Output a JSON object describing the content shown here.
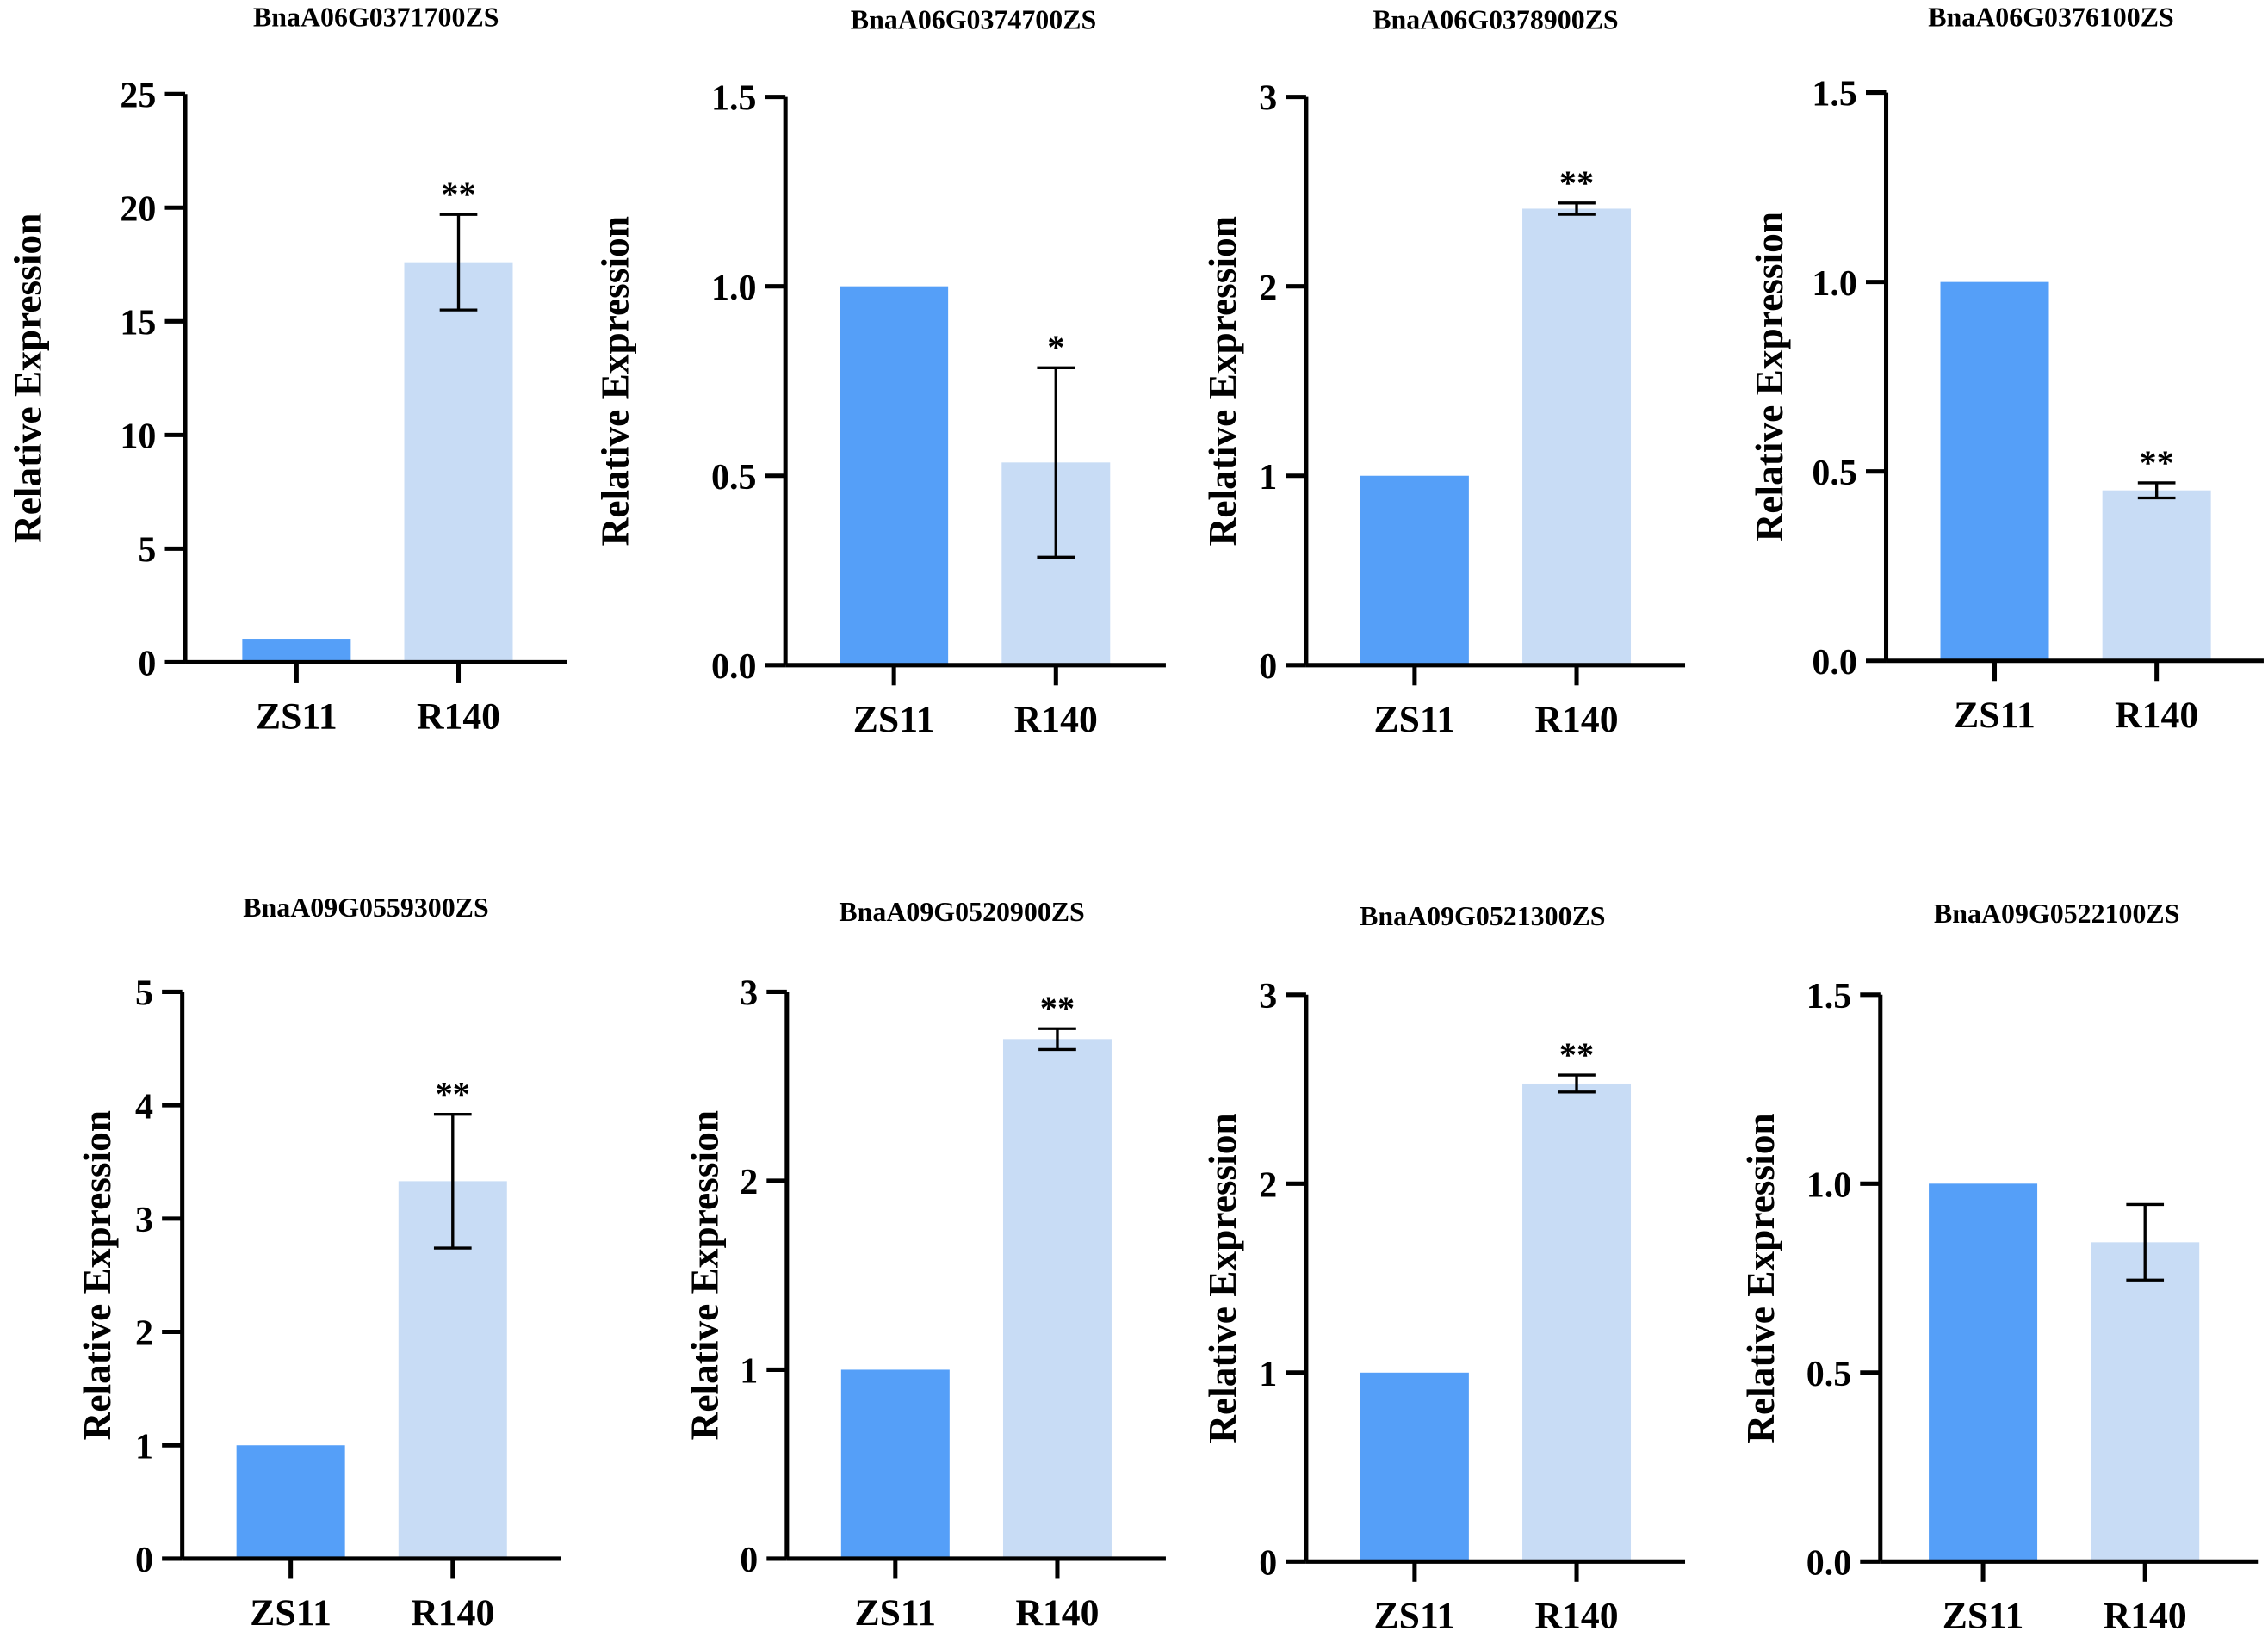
{
  "chart_data": [
    {
      "type": "bar",
      "title": "BnaA06G0371700ZS",
      "ylabel": "Relative Expression",
      "categories": [
        "ZS11",
        "R140"
      ],
      "values": [
        1,
        17.6
      ],
      "errors": [
        0,
        2.1
      ],
      "significance": [
        "",
        "**"
      ],
      "ylim": [
        0,
        25
      ],
      "yticks": [
        "0",
        "5",
        "10",
        "15",
        "20",
        "25"
      ]
    },
    {
      "type": "bar",
      "title": "BnaA06G0374700ZS",
      "ylabel": "Relative Expression",
      "categories": [
        "ZS11",
        "R140"
      ],
      "values": [
        1,
        0.535
      ],
      "errors": [
        0,
        0.25
      ],
      "significance": [
        "",
        "*"
      ],
      "ylim": [
        0,
        1.5
      ],
      "yticks": [
        "0.0",
        "0.5",
        "1.0",
        "1.5"
      ]
    },
    {
      "type": "bar",
      "title": "BnaA06G0378900ZS",
      "ylabel": "Relative Expression",
      "categories": [
        "ZS11",
        "R140"
      ],
      "values": [
        1,
        2.41
      ],
      "errors": [
        0,
        0.03
      ],
      "significance": [
        "",
        "**"
      ],
      "ylim": [
        0,
        3
      ],
      "yticks": [
        "0",
        "1",
        "2",
        "3"
      ]
    },
    {
      "type": "bar",
      "title": "BnaA06G0376100ZS",
      "ylabel": "Relative Expression",
      "categories": [
        "ZS11",
        "R140"
      ],
      "values": [
        1,
        0.45
      ],
      "errors": [
        0,
        0.02
      ],
      "significance": [
        "",
        "**"
      ],
      "ylim": [
        0,
        1.5
      ],
      "yticks": [
        "0.0",
        "0.5",
        "1.0",
        "1.5"
      ]
    },
    {
      "type": "bar",
      "title": "BnaA09G0559300ZS",
      "ylabel": "Relative Expression",
      "categories": [
        "ZS11",
        "R140"
      ],
      "values": [
        1,
        3.33
      ],
      "errors": [
        0,
        0.59
      ],
      "significance": [
        "",
        "**"
      ],
      "ylim": [
        0,
        5
      ],
      "yticks": [
        "0",
        "1",
        "2",
        "3",
        "4",
        "5"
      ]
    },
    {
      "type": "bar",
      "title": "BnaA09G0520900ZS",
      "ylabel": "Relative Expression",
      "categories": [
        "ZS11",
        "R140"
      ],
      "values": [
        1,
        2.75
      ],
      "errors": [
        0,
        0.055
      ],
      "significance": [
        "",
        "**"
      ],
      "ylim": [
        0,
        3
      ],
      "yticks": [
        "0",
        "1",
        "2",
        "3"
      ]
    },
    {
      "type": "bar",
      "title": "BnaA09G0521300ZS",
      "ylabel": "Relative Expression",
      "categories": [
        "ZS11",
        "R140"
      ],
      "values": [
        1,
        2.53
      ],
      "errors": [
        0,
        0.045
      ],
      "significance": [
        "",
        "**"
      ],
      "ylim": [
        0,
        3
      ],
      "yticks": [
        "0",
        "1",
        "2",
        "3"
      ]
    },
    {
      "type": "bar",
      "title": "BnaA09G0522100ZS",
      "ylabel": "Relative Expression",
      "categories": [
        "ZS11",
        "R140"
      ],
      "values": [
        1,
        0.845
      ],
      "errors": [
        0,
        0.1
      ],
      "significance": [
        "",
        ""
      ],
      "ylim": [
        0,
        1.5
      ],
      "yticks": [
        "0.0",
        "0.5",
        "1.0",
        "1.5"
      ]
    }
  ],
  "colors": {
    "ZS11": "#559ff8",
    "R140": "#c8dcf5"
  }
}
